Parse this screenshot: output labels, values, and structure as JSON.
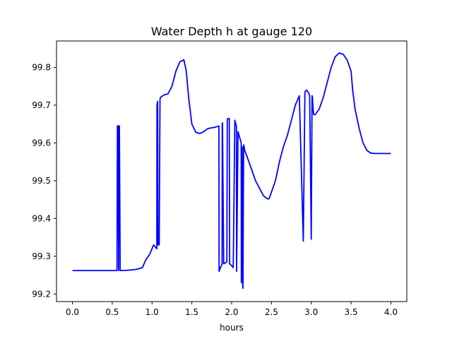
{
  "chart_data": {
    "type": "line",
    "title": "Water Depth h at gauge 120",
    "xlabel": "hours",
    "ylabel": "",
    "xlim": [
      -0.2,
      4.2
    ],
    "ylim": [
      99.18,
      99.87
    ],
    "xticks": [
      0.0,
      0.5,
      1.0,
      1.5,
      2.0,
      2.5,
      3.0,
      3.5,
      4.0
    ],
    "xtick_labels": [
      "0.0",
      "0.5",
      "1.0",
      "1.5",
      "2.0",
      "2.5",
      "3.0",
      "3.5",
      "4.0"
    ],
    "yticks": [
      99.2,
      99.3,
      99.4,
      99.5,
      99.6,
      99.7,
      99.8
    ],
    "ytick_labels": [
      "99.2",
      "99.3",
      "99.4",
      "99.5",
      "99.6",
      "99.7",
      "99.8"
    ],
    "grid": false,
    "series": [
      {
        "color": "#0000ff",
        "x": [
          0.0,
          0.3,
          0.56,
          0.565,
          0.575,
          0.58,
          0.585,
          0.59,
          0.6,
          0.7,
          0.8,
          0.88,
          0.92,
          0.97,
          1.02,
          1.06,
          1.062,
          1.07,
          1.075,
          1.08,
          1.09,
          1.1,
          1.105,
          1.115,
          1.15,
          1.2,
          1.25,
          1.3,
          1.35,
          1.4,
          1.43,
          1.46,
          1.5,
          1.55,
          1.6,
          1.65,
          1.7,
          1.75,
          1.8,
          1.84,
          1.842,
          1.86,
          1.88,
          1.882,
          1.885,
          1.9,
          1.94,
          1.945,
          1.96,
          1.97,
          1.975,
          2.0,
          2.02,
          2.04,
          2.045,
          2.06,
          2.062,
          2.08,
          2.1,
          2.12,
          2.122,
          2.13,
          2.132,
          2.14,
          2.142,
          2.15,
          2.152,
          2.165,
          2.2,
          2.25,
          2.3,
          2.35,
          2.4,
          2.45,
          2.47,
          2.5,
          2.55,
          2.6,
          2.65,
          2.7,
          2.75,
          2.8,
          2.85,
          2.9,
          2.92,
          2.922,
          2.93,
          2.94,
          2.96,
          2.98,
          3.0,
          3.01,
          3.015,
          3.02,
          3.025,
          3.03,
          3.05,
          3.1,
          3.15,
          3.2,
          3.25,
          3.3,
          3.35,
          3.4,
          3.45,
          3.5,
          3.52,
          3.55,
          3.6,
          3.65,
          3.7,
          3.75,
          3.8,
          3.85,
          3.9,
          3.95,
          4.0
        ],
        "y": [
          99.262,
          99.262,
          99.262,
          99.645,
          99.645,
          99.262,
          99.645,
          99.645,
          99.262,
          99.263,
          99.265,
          99.27,
          99.29,
          99.305,
          99.33,
          99.32,
          99.7,
          99.71,
          99.33,
          99.33,
          99.33,
          99.715,
          99.72,
          99.722,
          99.727,
          99.73,
          99.75,
          99.79,
          99.815,
          99.82,
          99.79,
          99.72,
          99.65,
          99.628,
          99.625,
          99.63,
          99.638,
          99.64,
          99.642,
          99.645,
          99.26,
          99.27,
          99.28,
          99.65,
          99.653,
          99.28,
          99.285,
          99.663,
          99.665,
          99.665,
          99.28,
          99.275,
          99.27,
          99.66,
          99.655,
          99.645,
          99.26,
          99.63,
          99.615,
          99.6,
          99.23,
          99.58,
          99.59,
          99.22,
          99.215,
          99.59,
          99.595,
          99.58,
          99.56,
          99.53,
          99.5,
          99.48,
          99.46,
          99.452,
          99.452,
          99.47,
          99.5,
          99.55,
          99.59,
          99.62,
          99.66,
          99.7,
          99.725,
          99.34,
          99.73,
          99.735,
          99.738,
          99.74,
          99.735,
          99.725,
          99.345,
          99.725,
          99.72,
          99.7,
          99.685,
          99.675,
          99.675,
          99.69,
          99.72,
          99.76,
          99.8,
          99.828,
          99.838,
          99.835,
          99.82,
          99.79,
          99.74,
          99.69,
          99.64,
          99.6,
          99.58,
          99.573,
          99.572,
          99.572,
          99.572,
          99.572,
          99.572
        ]
      }
    ]
  }
}
